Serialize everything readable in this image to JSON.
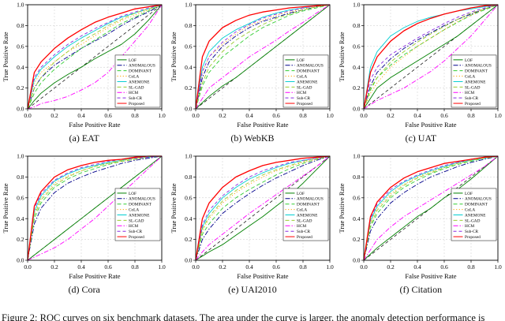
{
  "figure": {
    "caption": "Figure 2: ROC curves on six benchmark datasets. The area under the curve is larger, the anomaly detection performance is",
    "ticks": [
      "0.0",
      "0.2",
      "0.4",
      "0.6",
      "0.8",
      "1.0"
    ],
    "reference_line": "chance-diagonal",
    "grid": true
  },
  "methods": [
    {
      "name": "LOF",
      "color": "#008000",
      "dash": ""
    },
    {
      "name": "ANOMALOUS",
      "color": "#00008B",
      "dash": "6,2,1.5,2"
    },
    {
      "name": "DOMINANT",
      "color": "#32cd32",
      "dash": "5,3"
    },
    {
      "name": "CoLA",
      "color": "#ffa500",
      "dash": "1.2,2.4"
    },
    {
      "name": "ANEMONE",
      "color": "#00ced1",
      "dash": ""
    },
    {
      "name": "SL-GAD",
      "color": "#9acd32",
      "dash": "5,3"
    },
    {
      "name": "HCM",
      "color": "#ff00ff",
      "dash": "6,2,1.5,2"
    },
    {
      "name": "Sub-CR",
      "color": "#8a2be2",
      "dash": "4,3"
    },
    {
      "name": "Proposed",
      "color": "#ff0000",
      "dash": ""
    }
  ],
  "chart_data": [
    {
      "type": "line",
      "id": "a",
      "title": "(a) EAT",
      "xlabel": "False Positive Rate",
      "ylabel": "True Positive Rate",
      "xlim": [
        0,
        1
      ],
      "ylim": [
        0,
        1
      ],
      "legend": "lower right",
      "x": [
        0,
        0.05,
        0.1,
        0.2,
        0.3,
        0.4,
        0.5,
        0.6,
        0.7,
        0.8,
        0.9,
        1.0
      ],
      "series": [
        {
          "name": "LOF",
          "y": [
            0,
            0.08,
            0.15,
            0.25,
            0.33,
            0.4,
            0.48,
            0.55,
            0.62,
            0.72,
            0.85,
            1
          ]
        },
        {
          "name": "ANOMALOUS",
          "y": [
            0,
            0.2,
            0.3,
            0.42,
            0.5,
            0.58,
            0.65,
            0.72,
            0.8,
            0.87,
            0.93,
            1
          ]
        },
        {
          "name": "DOMINANT",
          "y": [
            0,
            0.15,
            0.25,
            0.38,
            0.48,
            0.58,
            0.66,
            0.74,
            0.82,
            0.88,
            0.94,
            1
          ]
        },
        {
          "name": "CoLA",
          "y": [
            0,
            0.25,
            0.35,
            0.45,
            0.55,
            0.62,
            0.7,
            0.78,
            0.85,
            0.9,
            0.95,
            1
          ]
        },
        {
          "name": "ANEMONE",
          "y": [
            0,
            0.28,
            0.38,
            0.5,
            0.6,
            0.68,
            0.75,
            0.82,
            0.88,
            0.92,
            0.96,
            1
          ]
        },
        {
          "name": "SL-GAD",
          "y": [
            0,
            0.2,
            0.3,
            0.45,
            0.55,
            0.65,
            0.72,
            0.8,
            0.86,
            0.92,
            0.96,
            1
          ]
        },
        {
          "name": "HCM",
          "y": [
            0,
            0.02,
            0.05,
            0.08,
            0.12,
            0.18,
            0.25,
            0.35,
            0.5,
            0.65,
            0.8,
            1
          ]
        },
        {
          "name": "Sub-CR",
          "y": [
            0,
            0.3,
            0.4,
            0.52,
            0.62,
            0.7,
            0.77,
            0.83,
            0.89,
            0.93,
            0.97,
            1
          ]
        },
        {
          "name": "Proposed",
          "y": [
            0,
            0.35,
            0.45,
            0.58,
            0.68,
            0.76,
            0.83,
            0.88,
            0.92,
            0.96,
            0.98,
            1
          ]
        }
      ]
    },
    {
      "type": "line",
      "id": "b",
      "title": "(b) WebKB",
      "xlabel": "False Positive Rate",
      "ylabel": "True Positive Rate",
      "xlim": [
        0,
        1
      ],
      "ylim": [
        0,
        1
      ],
      "legend": "lower right",
      "x": [
        0,
        0.05,
        0.1,
        0.2,
        0.3,
        0.4,
        0.5,
        0.6,
        0.7,
        0.8,
        0.9,
        1.0
      ],
      "series": [
        {
          "name": "LOF",
          "y": [
            0,
            0.06,
            0.12,
            0.22,
            0.3,
            0.4,
            0.5,
            0.6,
            0.7,
            0.8,
            0.9,
            1
          ]
        },
        {
          "name": "ANOMALOUS",
          "y": [
            0,
            0.3,
            0.45,
            0.6,
            0.7,
            0.78,
            0.84,
            0.88,
            0.92,
            0.95,
            0.98,
            1
          ]
        },
        {
          "name": "DOMINANT",
          "y": [
            0,
            0.22,
            0.35,
            0.5,
            0.6,
            0.7,
            0.78,
            0.84,
            0.9,
            0.94,
            0.97,
            1
          ]
        },
        {
          "name": "CoLA",
          "y": [
            0,
            0.35,
            0.5,
            0.62,
            0.72,
            0.8,
            0.85,
            0.9,
            0.93,
            0.96,
            0.98,
            1
          ]
        },
        {
          "name": "ANEMONE",
          "y": [
            0,
            0.4,
            0.55,
            0.68,
            0.76,
            0.82,
            0.88,
            0.92,
            0.95,
            0.97,
            0.99,
            1
          ]
        },
        {
          "name": "SL-GAD",
          "y": [
            0,
            0.25,
            0.4,
            0.55,
            0.66,
            0.74,
            0.81,
            0.87,
            0.91,
            0.95,
            0.98,
            1
          ]
        },
        {
          "name": "HCM",
          "y": [
            0,
            0.1,
            0.2,
            0.3,
            0.4,
            0.5,
            0.58,
            0.66,
            0.75,
            0.83,
            0.92,
            1
          ]
        },
        {
          "name": "Sub-CR",
          "y": [
            0,
            0.36,
            0.5,
            0.64,
            0.74,
            0.81,
            0.87,
            0.91,
            0.94,
            0.97,
            0.99,
            1
          ]
        },
        {
          "name": "Proposed",
          "y": [
            0,
            0.5,
            0.65,
            0.78,
            0.85,
            0.9,
            0.93,
            0.95,
            0.97,
            0.98,
            0.99,
            1
          ]
        }
      ]
    },
    {
      "type": "line",
      "id": "c",
      "title": "(c) UAT",
      "xlabel": "False Positive Rate",
      "ylabel": "True Positive Rate",
      "xlim": [
        0,
        1
      ],
      "ylim": [
        0,
        1
      ],
      "legend": "lower right",
      "x": [
        0,
        0.05,
        0.1,
        0.2,
        0.3,
        0.4,
        0.5,
        0.6,
        0.7,
        0.8,
        0.9,
        1.0
      ],
      "series": [
        {
          "name": "LOF",
          "y": [
            0,
            0.1,
            0.2,
            0.3,
            0.38,
            0.46,
            0.54,
            0.62,
            0.7,
            0.8,
            0.9,
            1
          ]
        },
        {
          "name": "ANOMALOUS",
          "y": [
            0,
            0.22,
            0.35,
            0.48,
            0.58,
            0.66,
            0.73,
            0.8,
            0.86,
            0.91,
            0.96,
            1
          ]
        },
        {
          "name": "DOMINANT",
          "y": [
            0,
            0.18,
            0.3,
            0.42,
            0.52,
            0.6,
            0.68,
            0.76,
            0.83,
            0.9,
            0.95,
            1
          ]
        },
        {
          "name": "CoLA",
          "y": [
            0,
            0.15,
            0.25,
            0.4,
            0.5,
            0.6,
            0.68,
            0.76,
            0.84,
            0.9,
            0.96,
            1
          ]
        },
        {
          "name": "ANEMONE",
          "y": [
            0,
            0.4,
            0.55,
            0.7,
            0.78,
            0.84,
            0.88,
            0.91,
            0.94,
            0.96,
            0.98,
            1
          ]
        },
        {
          "name": "SL-GAD",
          "y": [
            0,
            0.2,
            0.3,
            0.45,
            0.55,
            0.64,
            0.72,
            0.79,
            0.86,
            0.92,
            0.96,
            1
          ]
        },
        {
          "name": "HCM",
          "y": [
            0,
            0.04,
            0.08,
            0.14,
            0.2,
            0.28,
            0.36,
            0.46,
            0.58,
            0.7,
            0.85,
            1
          ]
        },
        {
          "name": "Sub-CR",
          "y": [
            0,
            0.28,
            0.4,
            0.52,
            0.6,
            0.68,
            0.75,
            0.82,
            0.88,
            0.93,
            0.97,
            1
          ]
        },
        {
          "name": "Proposed",
          "y": [
            0,
            0.35,
            0.5,
            0.65,
            0.75,
            0.82,
            0.87,
            0.91,
            0.94,
            0.97,
            0.99,
            1
          ]
        }
      ]
    },
    {
      "type": "line",
      "id": "d",
      "title": "(d) Cora",
      "xlabel": "False Positive Rate",
      "ylabel": "True Positive Rate",
      "xlim": [
        0,
        1
      ],
      "ylim": [
        0,
        1
      ],
      "legend": "center right",
      "x": [
        0,
        0.05,
        0.1,
        0.2,
        0.3,
        0.4,
        0.5,
        0.6,
        0.7,
        0.8,
        0.9,
        1.0
      ],
      "series": [
        {
          "name": "LOF",
          "y": [
            0,
            0.05,
            0.1,
            0.2,
            0.3,
            0.4,
            0.5,
            0.6,
            0.7,
            0.8,
            0.9,
            1
          ]
        },
        {
          "name": "ANOMALOUS",
          "y": [
            0,
            0.35,
            0.5,
            0.65,
            0.74,
            0.8,
            0.85,
            0.89,
            0.93,
            0.96,
            0.98,
            1
          ]
        },
        {
          "name": "DOMINANT",
          "y": [
            0,
            0.4,
            0.55,
            0.7,
            0.78,
            0.84,
            0.88,
            0.92,
            0.95,
            0.97,
            0.99,
            1
          ]
        },
        {
          "name": "CoLA",
          "y": [
            0,
            0.45,
            0.6,
            0.74,
            0.81,
            0.86,
            0.9,
            0.93,
            0.95,
            0.97,
            0.99,
            1
          ]
        },
        {
          "name": "ANEMONE",
          "y": [
            0,
            0.47,
            0.62,
            0.76,
            0.83,
            0.88,
            0.91,
            0.94,
            0.96,
            0.98,
            0.99,
            1
          ]
        },
        {
          "name": "SL-GAD",
          "y": [
            0,
            0.43,
            0.58,
            0.72,
            0.8,
            0.86,
            0.9,
            0.93,
            0.96,
            0.98,
            0.99,
            1
          ]
        },
        {
          "name": "HCM",
          "y": [
            0,
            0.03,
            0.06,
            0.12,
            0.2,
            0.3,
            0.4,
            0.52,
            0.64,
            0.76,
            0.88,
            1
          ]
        },
        {
          "name": "Sub-CR",
          "y": [
            0,
            0.5,
            0.64,
            0.77,
            0.84,
            0.89,
            0.92,
            0.95,
            0.97,
            0.98,
            0.99,
            1
          ]
        },
        {
          "name": "Proposed",
          "y": [
            0,
            0.52,
            0.66,
            0.8,
            0.87,
            0.91,
            0.94,
            0.96,
            0.97,
            0.99,
            1,
            1
          ]
        }
      ]
    },
    {
      "type": "line",
      "id": "e",
      "title": "(e) UAI2010",
      "xlabel": "False Positive Rate",
      "ylabel": "True Positive Rate",
      "xlim": [
        0,
        1
      ],
      "ylim": [
        0,
        1
      ],
      "legend": "center right",
      "x": [
        0,
        0.05,
        0.1,
        0.2,
        0.3,
        0.4,
        0.5,
        0.6,
        0.7,
        0.8,
        0.9,
        1.0
      ],
      "series": [
        {
          "name": "LOF",
          "y": [
            0,
            0.04,
            0.08,
            0.15,
            0.24,
            0.33,
            0.42,
            0.52,
            0.62,
            0.74,
            0.87,
            1
          ]
        },
        {
          "name": "ANOMALOUS",
          "y": [
            0,
            0.2,
            0.3,
            0.45,
            0.55,
            0.64,
            0.72,
            0.79,
            0.85,
            0.91,
            0.96,
            1
          ]
        },
        {
          "name": "DOMINANT",
          "y": [
            0,
            0.25,
            0.35,
            0.5,
            0.6,
            0.68,
            0.75,
            0.82,
            0.88,
            0.93,
            0.97,
            1
          ]
        },
        {
          "name": "CoLA",
          "y": [
            0,
            0.28,
            0.4,
            0.55,
            0.65,
            0.73,
            0.8,
            0.86,
            0.9,
            0.94,
            0.97,
            1
          ]
        },
        {
          "name": "ANEMONE",
          "y": [
            0,
            0.32,
            0.45,
            0.6,
            0.7,
            0.78,
            0.84,
            0.89,
            0.93,
            0.96,
            0.98,
            1
          ]
        },
        {
          "name": "SL-GAD",
          "y": [
            0,
            0.3,
            0.42,
            0.57,
            0.67,
            0.75,
            0.82,
            0.87,
            0.91,
            0.95,
            0.98,
            1
          ]
        },
        {
          "name": "HCM",
          "y": [
            0,
            0.08,
            0.15,
            0.25,
            0.35,
            0.45,
            0.54,
            0.63,
            0.72,
            0.81,
            0.9,
            1
          ]
        },
        {
          "name": "Sub-CR",
          "y": [
            0,
            0.34,
            0.48,
            0.62,
            0.72,
            0.8,
            0.86,
            0.9,
            0.94,
            0.96,
            0.98,
            1
          ]
        },
        {
          "name": "Proposed",
          "y": [
            0,
            0.4,
            0.55,
            0.7,
            0.8,
            0.86,
            0.91,
            0.94,
            0.96,
            0.98,
            0.99,
            1
          ]
        }
      ]
    },
    {
      "type": "line",
      "id": "f",
      "title": "(f) Citation",
      "xlabel": "False Positive Rate",
      "ylabel": "True Positive Rate",
      "xlim": [
        0,
        1
      ],
      "ylim": [
        0,
        1
      ],
      "legend": "center right",
      "x": [
        0,
        0.05,
        0.1,
        0.2,
        0.3,
        0.4,
        0.5,
        0.6,
        0.7,
        0.8,
        0.9,
        1.0
      ],
      "series": [
        {
          "name": "LOF",
          "y": [
            0,
            0.06,
            0.12,
            0.22,
            0.32,
            0.42,
            0.5,
            0.6,
            0.68,
            0.78,
            0.89,
            1
          ]
        },
        {
          "name": "ANOMALOUS",
          "y": [
            0,
            0.28,
            0.4,
            0.55,
            0.65,
            0.73,
            0.8,
            0.85,
            0.9,
            0.94,
            0.97,
            1
          ]
        },
        {
          "name": "DOMINANT",
          "y": [
            0,
            0.32,
            0.45,
            0.6,
            0.7,
            0.77,
            0.83,
            0.88,
            0.92,
            0.95,
            0.98,
            1
          ]
        },
        {
          "name": "CoLA",
          "y": [
            0,
            0.36,
            0.5,
            0.64,
            0.73,
            0.8,
            0.85,
            0.89,
            0.93,
            0.96,
            0.98,
            1
          ]
        },
        {
          "name": "ANEMONE",
          "y": [
            0,
            0.38,
            0.52,
            0.66,
            0.75,
            0.81,
            0.86,
            0.9,
            0.94,
            0.96,
            0.98,
            1
          ]
        },
        {
          "name": "SL-GAD",
          "y": [
            0,
            0.34,
            0.48,
            0.62,
            0.72,
            0.79,
            0.84,
            0.89,
            0.93,
            0.96,
            0.98,
            1
          ]
        },
        {
          "name": "HCM",
          "y": [
            0,
            0.1,
            0.2,
            0.32,
            0.42,
            0.5,
            0.58,
            0.66,
            0.74,
            0.82,
            0.9,
            1
          ]
        },
        {
          "name": "Sub-CR",
          "y": [
            0,
            0.4,
            0.54,
            0.68,
            0.76,
            0.82,
            0.87,
            0.91,
            0.94,
            0.97,
            0.99,
            1
          ]
        },
        {
          "name": "Proposed",
          "y": [
            0,
            0.42,
            0.56,
            0.7,
            0.79,
            0.85,
            0.89,
            0.93,
            0.95,
            0.97,
            0.99,
            1
          ]
        }
      ]
    }
  ]
}
